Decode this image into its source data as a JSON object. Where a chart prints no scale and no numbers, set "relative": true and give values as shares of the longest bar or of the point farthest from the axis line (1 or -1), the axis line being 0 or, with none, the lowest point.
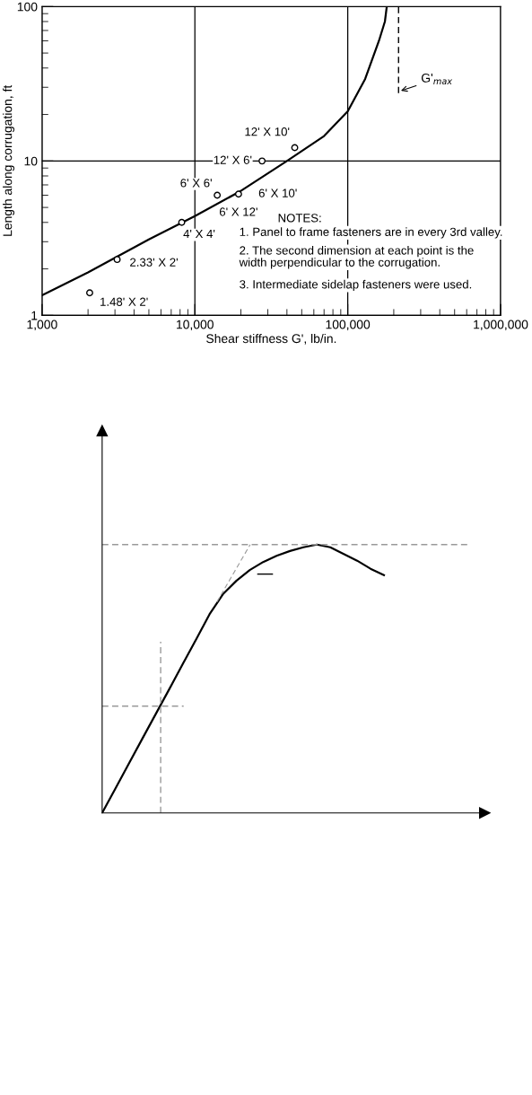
{
  "chart_data": [
    {
      "type": "line",
      "xlabel": "Shear stiffness G', lb/in.",
      "ylabel": "Length along corrugation, ft",
      "log": "xy",
      "grid": true,
      "marker": "none",
      "xlim": [
        1000,
        1000000
      ],
      "ylim": [
        1,
        100
      ],
      "xticks": [
        {
          "value": 1000,
          "label": "1,000"
        },
        {
          "value": 10000,
          "label": "10,000"
        },
        {
          "value": 100000,
          "label": "100,000"
        },
        {
          "value": 1000000,
          "label": "1,000,000"
        }
      ],
      "yticks": [
        1,
        10,
        100
      ],
      "series": [
        {
          "color": "#000000",
          "x": [
            1000,
            2000,
            5000,
            10000,
            20000,
            40000,
            70000,
            100000,
            130000,
            160000,
            175000,
            180000
          ],
          "values": [
            1.35,
            1.9,
            3.1,
            4.4,
            6.4,
            10,
            14.5,
            21,
            34,
            60,
            80,
            100
          ]
        },
        {
          "type": "scatter",
          "marker": "circle",
          "color": "#000000",
          "x": [
            45000,
            27500,
            14000,
            19300,
            8200,
            3100,
            2050
          ],
          "values": [
            12.2,
            10,
            6.0,
            6.1,
            4.0,
            2.3,
            1.4
          ]
        }
      ],
      "ref_lines": [
        {
          "axis": "x",
          "value": 215000,
          "label": "G'$_{max}$",
          "line_style": "dashed",
          "color": "#000000"
        }
      ],
      "annotations": [
        {
          "text": "12' X 10'",
          "x": 45000,
          "y": 12.2
        },
        {
          "text": "12' X 6'",
          "x": 27500,
          "y": 10
        },
        {
          "text": "6' X 6'",
          "x": 14000,
          "y": 6.0
        },
        {
          "text": "6' X 10'",
          "x": 19300,
          "y": 6.1
        },
        {
          "text": "6' X 12'",
          "x": 19300,
          "y": 6.1
        },
        {
          "text": "4' X 4'",
          "x": 8200,
          "y": 4.0
        },
        {
          "text": "2.33' X 2'",
          "x": 3100,
          "y": 2.3
        },
        {
          "text": "1.48' X 2'",
          "x": 2050,
          "y": 1.4
        },
        "NOTES:",
        "1. Panel to frame fasteners are in every 3rd valley.",
        "2. The second dimension at each point is the\nwidth perpendicular to the corrugation.",
        "3. Intermediate sidelap fasteners were used."
      ]
    },
    {
      "type": "line",
      "relative": true,
      "marker": "none",
      "grid": false,
      "categories": [
        null,
        null,
        null,
        null,
        null,
        null,
        null,
        null,
        null,
        null,
        null,
        null,
        null,
        null,
        null,
        null,
        null,
        null,
        null,
        null,
        null,
        null,
        null,
        null,
        null,
        null,
        null,
        null,
        null
      ],
      "series": [
        {
          "color": "#000000",
          "values": [
            0,
            0.092,
            0.185,
            0.277,
            0.369,
            0.461,
            0.554,
            0.646,
            0.74,
            0.815,
            0.865,
            0.905,
            0.935,
            0.958,
            0.976,
            0.99,
            1.0,
            0.99,
            0.965,
            0.94,
            0.91,
            0.886,
            null,
            null,
            null,
            null,
            null,
            null,
            null
          ]
        }
      ],
      "ref_lines": [
        {
          "axis": "y",
          "value": 1.0,
          "color": "#999999",
          "line_style": "dashed"
        },
        {
          "axis": "y",
          "value": 0.398,
          "color": "#999999",
          "line_style": "dashed"
        }
      ]
    }
  ]
}
